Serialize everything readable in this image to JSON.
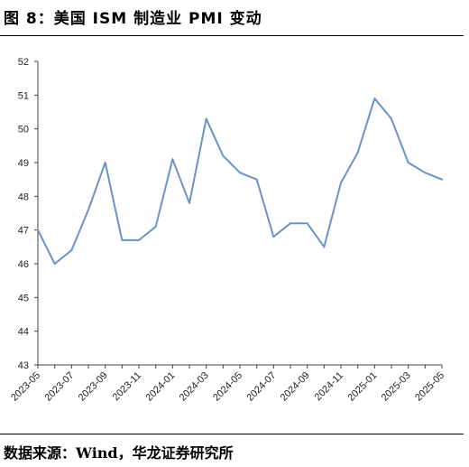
{
  "header": {
    "title": "图 8：美国 ISM 制造业 PMI 变动"
  },
  "footer": {
    "source": "数据来源：Wind，华龙证券研究所"
  },
  "chart_data": {
    "type": "line",
    "title": "",
    "xlabel": "",
    "ylabel": "",
    "ylim": [
      43,
      52
    ],
    "yticks": [
      43,
      44,
      45,
      46,
      47,
      48,
      49,
      50,
      51,
      52
    ],
    "grid": false,
    "legend": "none",
    "line_color": "#6a93c7",
    "x": [
      "2023-05",
      "2023-06",
      "2023-07",
      "2023-08",
      "2023-09",
      "2023-10",
      "2023-11",
      "2023-12",
      "2024-01",
      "2024-02",
      "2024-03",
      "2024-04",
      "2024-05",
      "2024-06",
      "2024-07",
      "2024-08",
      "2024-09",
      "2024-10",
      "2024-11",
      "2024-12",
      "2025-01",
      "2025-02",
      "2025-03",
      "2025-04",
      "2025-05"
    ],
    "xtick_labels": [
      "2023-05",
      "2023-07",
      "2023-09",
      "2023-11",
      "2024-01",
      "2024-03",
      "2024-05",
      "2024-07",
      "2024-09",
      "2024-11",
      "2025-01",
      "2025-03",
      "2025-05"
    ],
    "series": [
      {
        "values": [
          47.0,
          46.0,
          46.4,
          47.6,
          49.0,
          46.7,
          46.7,
          47.1,
          49.1,
          47.8,
          50.3,
          49.2,
          48.7,
          48.5,
          46.8,
          47.2,
          47.2,
          46.5,
          48.4,
          49.3,
          50.9,
          50.3,
          49.0,
          48.7,
          48.5
        ]
      }
    ]
  }
}
